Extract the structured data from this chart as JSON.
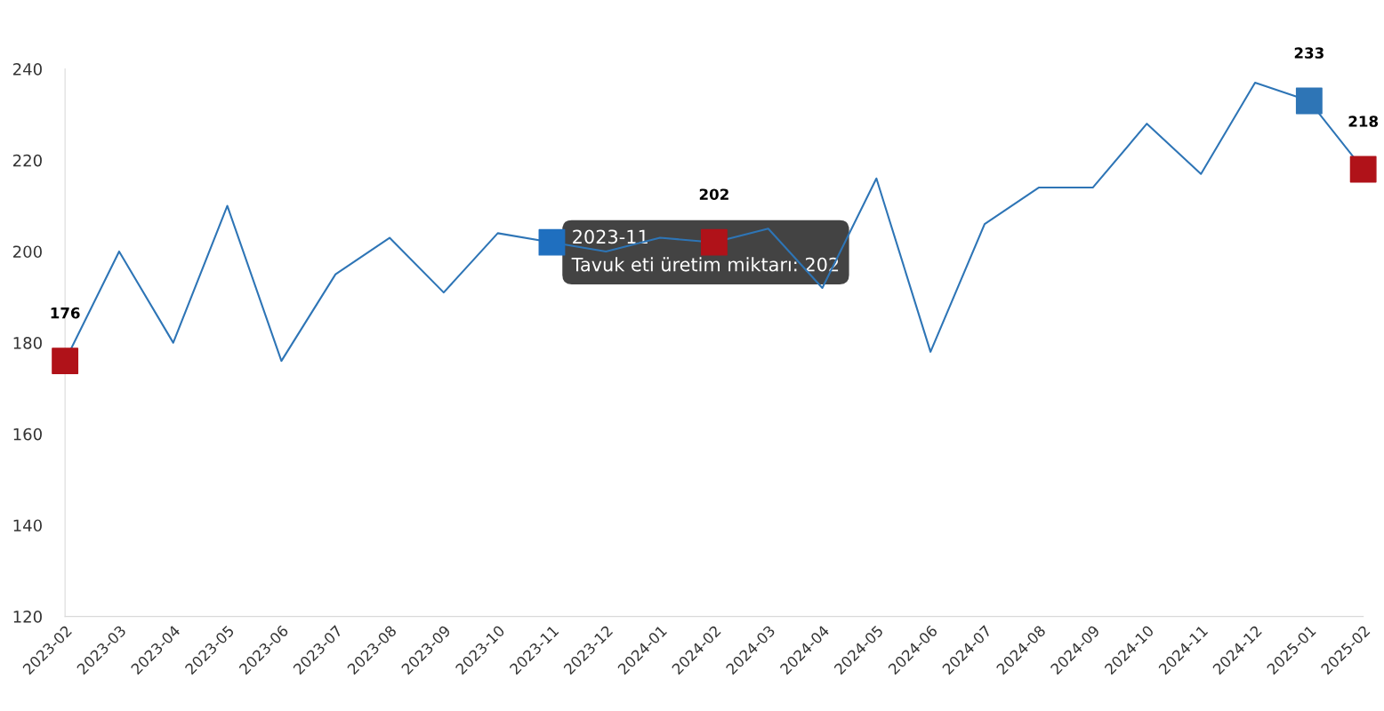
{
  "chart_data": {
    "type": "line",
    "categories": [
      "2023-02",
      "2023-03",
      "2023-04",
      "2023-05",
      "2023-06",
      "2023-07",
      "2023-08",
      "2023-09",
      "2023-10",
      "2023-11",
      "2023-12",
      "2024-01",
      "2024-02",
      "2024-03",
      "2024-04",
      "2024-05",
      "2024-06",
      "2024-07",
      "2024-08",
      "2024-09",
      "2024-10",
      "2024-11",
      "2024-12",
      "2025-01",
      "2025-02"
    ],
    "series": [
      {
        "color": "#2e75b6",
        "values": [
          176,
          200,
          180,
          210,
          176,
          195,
          203,
          191,
          204,
          202,
          200,
          203,
          202,
          205,
          192,
          216,
          178,
          206,
          214,
          214,
          228,
          217,
          237,
          233,
          218
        ],
        "value_labels": [
          "176",
          null,
          null,
          null,
          null,
          null,
          null,
          null,
          null,
          null,
          null,
          null,
          "202",
          null,
          null,
          null,
          null,
          null,
          null,
          null,
          null,
          null,
          null,
          "233",
          "218"
        ]
      },
      {
        "type": "scatter",
        "marker": "square",
        "values": [
          176,
          null,
          null,
          null,
          null,
          null,
          null,
          null,
          null,
          202,
          null,
          null,
          202,
          null,
          null,
          null,
          null,
          null,
          null,
          null,
          null,
          null,
          null,
          233,
          218
        ],
        "colors": [
          "#b01219",
          null,
          null,
          null,
          null,
          null,
          null,
          null,
          null,
          "#1f6fbf",
          null,
          null,
          "#b01219",
          null,
          null,
          null,
          null,
          null,
          null,
          null,
          null,
          null,
          null,
          "#2e75b6",
          "#b01219"
        ]
      }
    ],
    "ylim": [
      120,
      240
    ],
    "yticks": [
      120,
      140,
      160,
      180,
      200,
      220,
      240
    ],
    "grid": false,
    "legend": false,
    "annotations": [
      {
        "text": "2023-11\nTavuk eti üretim miktarı: 202",
        "x": "2023-11",
        "y": 202
      }
    ]
  }
}
